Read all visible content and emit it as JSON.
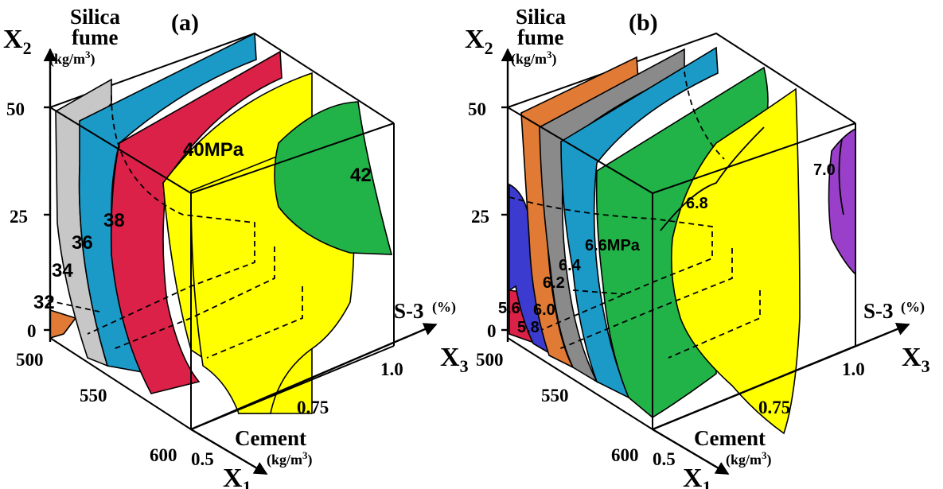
{
  "colors": {
    "orange": "#e07a34",
    "silver": "#c7c7c7",
    "gray": "#8a8a8a",
    "blue": "#1b9ac8",
    "red": "#dc2148",
    "yellow": "#ffff00",
    "green": "#21b347",
    "navy": "#3b3bd0",
    "purple": "#9a3fc9"
  },
  "panels": [
    {
      "id": "a",
      "label": "(a)",
      "x2_title": [
        "Silica",
        "fume"
      ],
      "x2_unit": "(kg/m",
      "x2_unit_sup": "3",
      "x2_unit_close": ")",
      "x2_symbol": "X",
      "x2_sub": "2",
      "x2_ticks": [
        "50",
        "25",
        "0"
      ],
      "x1_ticks": [
        "500",
        "550",
        "600"
      ],
      "x3_ticks": [
        "0.5",
        "0.75",
        "1.0"
      ],
      "x1_title": "Cement",
      "x1_unit": "(kg/m",
      "x1_unit_sup": "3",
      "x1_unit_close": ")",
      "x1_symbol": "X",
      "x1_sub": "1",
      "x3_title": "S-3",
      "x3_unit": "(%)",
      "x3_symbol": "X",
      "x3_sub": "3",
      "contours": [
        {
          "label": "32",
          "color": "orange"
        },
        {
          "label": "34",
          "color": "silver"
        },
        {
          "label": "36",
          "color": "blue"
        },
        {
          "label": "38",
          "color": "red"
        },
        {
          "label": "40MPa",
          "color": "yellow"
        },
        {
          "label": "42",
          "color": "green"
        }
      ]
    },
    {
      "id": "b",
      "label": "(b)",
      "x2_title": [
        "Silica",
        "fume"
      ],
      "x2_unit": "(kg/m",
      "x2_unit_sup": "3",
      "x2_unit_close": ")",
      "x2_symbol": "X",
      "x2_sub": "2",
      "x2_ticks": [
        "50",
        "25",
        "0"
      ],
      "x1_ticks": [
        "500",
        "550",
        "600"
      ],
      "x3_ticks": [
        "0.5",
        "0.75",
        "1.0"
      ],
      "x1_title": "Cement",
      "x1_unit": "(kg/m",
      "x1_unit_sup": "3",
      "x1_unit_close": ")",
      "x1_symbol": "X",
      "x1_sub": "1",
      "x3_title": "S-3",
      "x3_unit": "(%)",
      "x3_symbol": "X",
      "x3_sub": "3",
      "contours": [
        {
          "label": "5.6",
          "color": "red"
        },
        {
          "label": "5.8",
          "color": "navy"
        },
        {
          "label": "6.0",
          "color": "orange"
        },
        {
          "label": "6.2",
          "color": "gray"
        },
        {
          "label": "6.4",
          "color": "blue"
        },
        {
          "label": "6.6MPa",
          "color": "green"
        },
        {
          "label": "6.8",
          "color": "yellow"
        },
        {
          "label": "7.0",
          "color": "purple"
        }
      ]
    }
  ]
}
